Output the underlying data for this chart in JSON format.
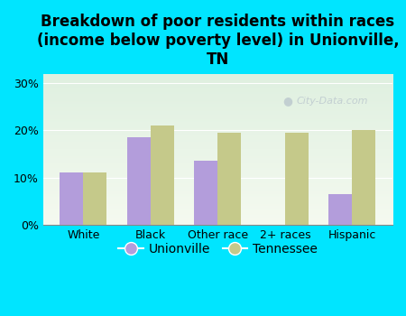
{
  "title": "Breakdown of poor residents within races\n(income below poverty level) in Unionville,\nTN",
  "categories": [
    "White",
    "Black",
    "Other race",
    "2+ races",
    "Hispanic"
  ],
  "unionville_values": [
    11,
    18.5,
    13.5,
    0,
    6.5
  ],
  "tennessee_values": [
    11,
    21,
    19.5,
    19.5,
    20
  ],
  "unionville_color": "#b39ddb",
  "tennessee_color": "#c5c98a",
  "background_color": "#00e5ff",
  "plot_bg_top": "#dff0e0",
  "plot_bg_bottom": "#f5faf0",
  "ylim": [
    0,
    32
  ],
  "yticks": [
    0,
    10,
    20,
    30
  ],
  "ytick_labels": [
    "0%",
    "10%",
    "20%",
    "30%"
  ],
  "bar_width": 0.35,
  "legend_labels": [
    "Unionville",
    "Tennessee"
  ],
  "watermark": "City-Data.com",
  "title_fontsize": 12,
  "tick_fontsize": 9,
  "legend_fontsize": 10
}
